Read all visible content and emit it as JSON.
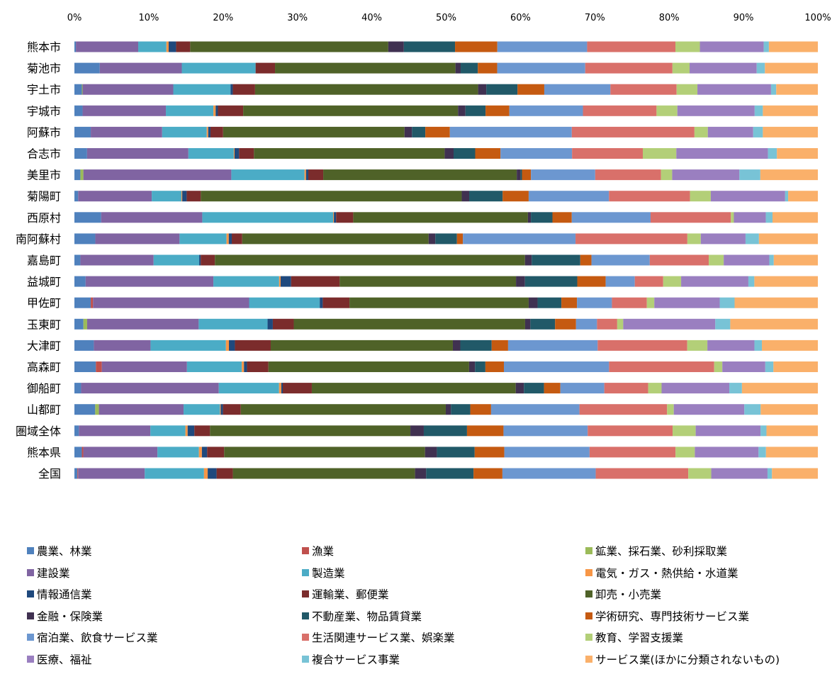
{
  "chart_data": {
    "type": "bar",
    "orientation": "horizontal",
    "stacked": "100%",
    "xlim": [
      0,
      100
    ],
    "xticks": [
      "0%",
      "10%",
      "20%",
      "30%",
      "40%",
      "50%",
      "60%",
      "70%",
      "80%",
      "90%",
      "100%"
    ],
    "grid": false,
    "legend_position": "bottom",
    "categories": [
      "熊本市",
      "菊池市",
      "宇土市",
      "宇城市",
      "阿蘇市",
      "合志市",
      "美里市",
      "菊陽町",
      "西原村",
      "南阿蘇村",
      "嘉島町",
      "益城町",
      "甲佐町",
      "玉東町",
      "大津町",
      "高森町",
      "御船町",
      "山都町",
      "圏域全体",
      "熊本県",
      "全国"
    ],
    "series": [
      {
        "name": "農業、林業",
        "color": "#4F81BD",
        "values": [
          0.2,
          3.4,
          1.0,
          1.1,
          2.2,
          1.7,
          0.8,
          0.5,
          3.6,
          2.8,
          0.8,
          1.5,
          2.2,
          1.2,
          2.6,
          2.9,
          0.9,
          2.8,
          0.6,
          1.0,
          0.4
        ]
      },
      {
        "name": "漁業",
        "color": "#C0504D",
        "values": [
          0,
          0,
          0,
          0,
          0,
          0,
          0,
          0,
          0,
          0,
          0,
          0,
          0.3,
          0,
          0,
          0.8,
          0,
          0,
          0,
          0.2,
          0.1
        ]
      },
      {
        "name": "鉱業、採石業、砂利採取業",
        "color": "#9BBB59",
        "values": [
          0,
          0,
          0.1,
          0,
          0,
          0,
          0.4,
          0,
          0,
          0,
          0,
          0,
          0,
          0.5,
          0,
          0,
          0,
          0.5,
          0,
          0,
          0
        ]
      },
      {
        "name": "建設業",
        "color": "#8064A2",
        "values": [
          8.4,
          11.0,
          12.2,
          11.2,
          9.6,
          13.6,
          19.8,
          9.9,
          13.6,
          11.3,
          9.8,
          17.1,
          21.0,
          14.9,
          7.6,
          11.5,
          18.5,
          11.4,
          9.6,
          10.0,
          9.0
        ]
      },
      {
        "name": "製造業",
        "color": "#4BACC6",
        "values": [
          3.8,
          9.9,
          7.7,
          6.4,
          6.0,
          6.1,
          9.8,
          4.0,
          17.6,
          6.3,
          6.1,
          8.8,
          9.5,
          9.2,
          10.1,
          7.4,
          8.1,
          4.9,
          4.7,
          5.6,
          8.0
        ]
      },
      {
        "name": "電気・ガス・熱供給・水道業",
        "color": "#F79646",
        "values": [
          0.3,
          0,
          0,
          0.3,
          0.2,
          0.1,
          0.2,
          0.1,
          0.1,
          0.3,
          0,
          0.2,
          0,
          0,
          0.4,
          0.3,
          0.3,
          0.1,
          0.3,
          0.4,
          0.5
        ]
      },
      {
        "name": "情報通信業",
        "color": "#1F497D",
        "values": [
          1.0,
          0,
          0.3,
          0.3,
          0.3,
          0.6,
          0.3,
          0.6,
          0.3,
          0.4,
          0.2,
          1.4,
          0.4,
          0.7,
          0.8,
          0.4,
          0.2,
          0.3,
          0.9,
          0.7,
          1.2
        ]
      },
      {
        "name": "運輸業、郵便業",
        "color": "#7B2C2C",
        "values": [
          1.9,
          2.6,
          3.0,
          3.4,
          1.7,
          2.0,
          2.0,
          1.9,
          2.3,
          1.4,
          1.9,
          6.5,
          3.6,
          2.8,
          4.8,
          2.9,
          3.9,
          2.4,
          2.1,
          2.3,
          2.2
        ]
      },
      {
        "name": "卸売・小売業",
        "color": "#4F6228",
        "values": [
          26.7,
          24.2,
          30.0,
          28.9,
          24.4,
          25.6,
          25.9,
          35.1,
          23.5,
          25.0,
          41.5,
          23.6,
          24.1,
          30.9,
          24.4,
          27.1,
          27.4,
          27.6,
          26.9,
          27.1,
          24.6
        ]
      },
      {
        "name": "金融・保険業",
        "color": "#403151",
        "values": [
          2.1,
          0.7,
          1.1,
          1.0,
          1.0,
          1.2,
          0.5,
          1.0,
          0.4,
          0.9,
          0.9,
          1.2,
          1.2,
          0.7,
          1.0,
          0.8,
          1.1,
          0.7,
          1.8,
          1.6,
          1.5
        ]
      },
      {
        "name": "不動産業、物品賃貸業",
        "color": "#215968",
        "values": [
          6.9,
          2.3,
          4.2,
          2.7,
          1.8,
          2.9,
          0.2,
          4.5,
          2.9,
          2.9,
          6.5,
          7.0,
          3.2,
          3.3,
          4.2,
          1.4,
          2.7,
          2.6,
          5.8,
          5.1,
          6.4
        ]
      },
      {
        "name": "学術研究、専門技術サービス業",
        "color": "#C55A11",
        "values": [
          5.7,
          2.6,
          3.6,
          3.2,
          3.3,
          3.4,
          1.2,
          3.5,
          2.6,
          0.8,
          1.5,
          3.8,
          2.1,
          2.8,
          2.2,
          2.5,
          2.2,
          2.8,
          4.9,
          4.0,
          3.9
        ]
      },
      {
        "name": "宿泊業、飲食サービス業",
        "color": "#6C97D0",
        "values": [
          12.1,
          11.8,
          8.9,
          9.9,
          16.4,
          9.6,
          8.6,
          10.8,
          10.6,
          15.1,
          7.8,
          3.9,
          4.7,
          2.8,
          12.0,
          14.2,
          5.9,
          11.9,
          11.3,
          11.5,
          12.6
        ]
      },
      {
        "name": "生活関連サービス業、娯楽業",
        "color": "#D9706A",
        "values": [
          11.9,
          11.7,
          8.9,
          9.9,
          16.5,
          9.5,
          8.8,
          10.9,
          10.8,
          15.0,
          7.9,
          3.8,
          4.7,
          2.7,
          12.0,
          14.2,
          5.9,
          11.8,
          11.4,
          11.6,
          12.5
        ]
      },
      {
        "name": "教育、学習支援業",
        "color": "#B3CF78",
        "values": [
          3.3,
          2.3,
          2.8,
          2.8,
          1.8,
          4.5,
          1.5,
          2.8,
          0.4,
          1.8,
          2.0,
          2.4,
          1.0,
          0.8,
          2.7,
          1.1,
          1.8,
          0.9,
          3.1,
          2.6,
          3.1
        ]
      },
      {
        "name": "医療、福祉",
        "color": "#9A7FC0",
        "values": [
          8.6,
          9.0,
          9.9,
          10.4,
          6.1,
          12.3,
          9.0,
          10.0,
          4.3,
          6.0,
          6.1,
          9.0,
          8.8,
          12.3,
          6.3,
          5.8,
          9.1,
          9.5,
          8.7,
          8.6,
          7.6
        ]
      },
      {
        "name": "複合サービス事業",
        "color": "#78C3D6",
        "values": [
          0.7,
          1.1,
          0.7,
          1.1,
          1.3,
          1.2,
          2.8,
          0.4,
          0.9,
          1.8,
          0.6,
          0.8,
          2.0,
          2.0,
          1.0,
          1.1,
          1.7,
          2.2,
          0.8,
          1.0,
          0.6
        ]
      },
      {
        "name": "サービス業(ほかに分類されないもの)",
        "color": "#FAB06A",
        "values": [
          6.6,
          7.1,
          5.6,
          7.4,
          7.4,
          5.5,
          7.7,
          4.0,
          6.1,
          7.9,
          5.9,
          8.5,
          11.2,
          11.7,
          7.5,
          6.0,
          10.2,
          7.7,
          6.9,
          7.0,
          6.2
        ]
      }
    ]
  }
}
